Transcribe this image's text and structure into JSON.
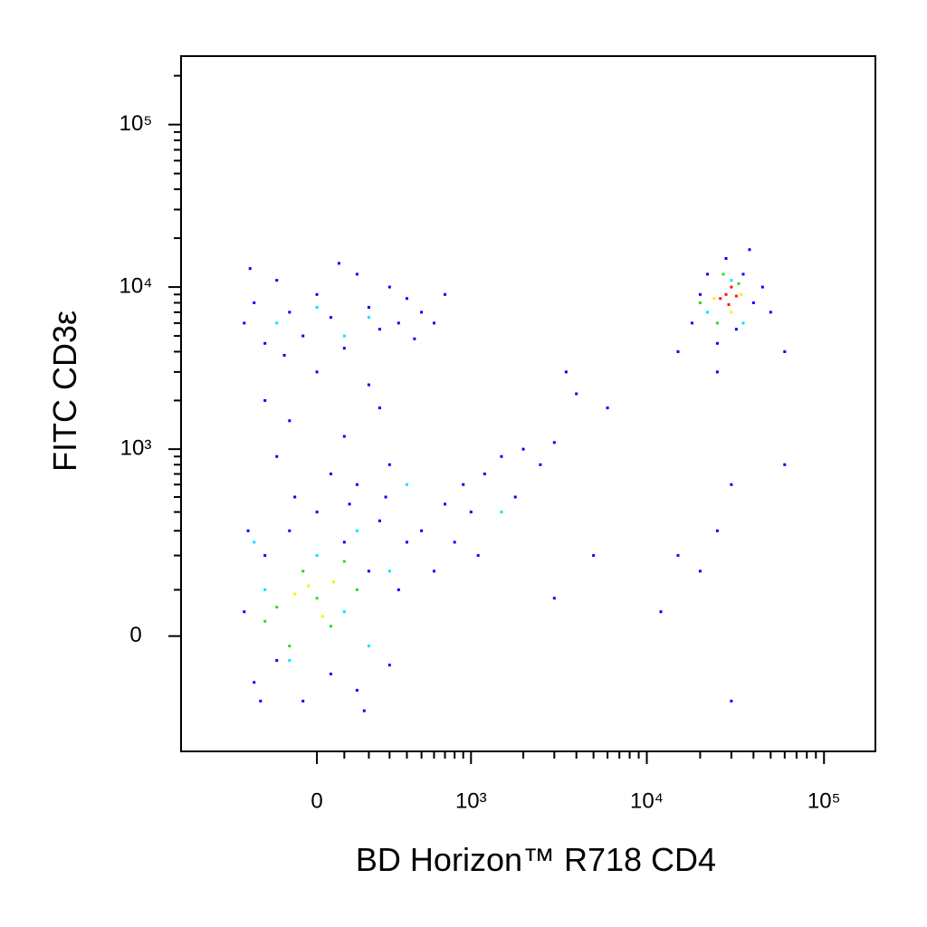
{
  "chart_data": {
    "type": "scatter",
    "xlabel": "BD Horizon™ R718  CD4",
    "ylabel": "FITC  CD3ε",
    "xscale": "biexponential",
    "yscale": "biexponential",
    "xlim": [
      -780,
      195000
    ],
    "ylim": [
      -350,
      264000
    ],
    "xticks": [
      0,
      {
        "value": 1000,
        "label": "10³"
      },
      {
        "value": 10000,
        "label": "10⁴"
      },
      {
        "value": 100000,
        "label": "10⁵"
      }
    ],
    "yticks": [
      0,
      {
        "value": 1000,
        "label": "10³"
      },
      {
        "value": 10000,
        "label": "10⁴"
      },
      {
        "value": 100000,
        "label": "10⁵"
      }
    ],
    "xminorticks": [
      100,
      200,
      300,
      400,
      500,
      600,
      700,
      800,
      900,
      2000,
      3000,
      4000,
      5000,
      6000,
      7000,
      8000,
      9000,
      20000,
      30000,
      40000,
      50000,
      60000,
      70000,
      80000,
      90000
    ],
    "yminorticks": [
      100,
      200,
      300,
      400,
      500,
      600,
      700,
      800,
      900,
      2000,
      3000,
      4000,
      5000,
      6000,
      7000,
      8000,
      9000,
      20000,
      30000,
      40000,
      50000,
      60000,
      70000,
      80000,
      90000,
      200000
    ],
    "series": [
      {
        "color": "#0000ff",
        "x": [
          -300,
          -250,
          -200,
          -150,
          -100,
          -50,
          0,
          50,
          100,
          150,
          200,
          250,
          300,
          350,
          400,
          -280,
          -220,
          120,
          -80,
          280,
          180,
          -300,
          -250,
          -200,
          -150,
          -100,
          -50,
          0,
          50,
          100,
          150,
          200,
          250,
          300,
          350,
          400,
          450,
          500,
          600,
          700,
          -270,
          -120,
          80,
          -200,
          -100,
          0,
          100,
          200,
          300,
          -150,
          50,
          250,
          150,
          500,
          700,
          900,
          1200,
          1500,
          2000,
          2500,
          3000,
          800,
          1000,
          1800,
          600,
          1100,
          4000,
          6000,
          3500,
          18000,
          20000,
          22000,
          25000,
          28000,
          32000,
          35000,
          40000,
          45000,
          50000,
          15000,
          25000,
          38000,
          60000,
          30000,
          25000,
          20000,
          30000,
          60000,
          15000,
          12000,
          5000,
          3000
        ],
        "y": [
          50,
          -100,
          200,
          -50,
          300,
          -150,
          400,
          -80,
          250,
          -120,
          150,
          350,
          -60,
          100,
          250,
          300,
          -150,
          450,
          500,
          500,
          -180,
          6000,
          8000,
          4500,
          11000,
          7000,
          5000,
          9000,
          6500,
          4200,
          12000,
          7500,
          5500,
          10000,
          6000,
          8500,
          4800,
          7000,
          6000,
          9000,
          13000,
          3800,
          14000,
          2000,
          1500,
          3000,
          1200,
          2500,
          800,
          900,
          700,
          1800,
          600,
          300,
          450,
          600,
          700,
          900,
          1000,
          800,
          1100,
          250,
          400,
          500,
          150,
          200,
          2200,
          1800,
          3000,
          6000,
          9000,
          12000,
          4500,
          15000,
          5500,
          12000,
          8000,
          10000,
          7000,
          4000,
          3000,
          17000,
          4000,
          600,
          300,
          150,
          -150,
          800,
          200,
          50,
          200,
          80
        ]
      },
      {
        "color": "#00e5ff",
        "x": [
          -200,
          -100,
          0,
          100,
          200,
          -250,
          150,
          300,
          -150,
          0,
          200,
          100,
          22000,
          35000,
          30000,
          400,
          1500
        ],
        "y": [
          100,
          -50,
          200,
          50,
          -20,
          250,
          300,
          150,
          6000,
          7500,
          6500,
          5000,
          7000,
          6000,
          11000,
          600,
          400
        ]
      },
      {
        "color": "#22dd22",
        "x": [
          -150,
          -50,
          50,
          100,
          -100,
          0,
          150,
          -200,
          20000,
          25000,
          33000,
          27000
        ],
        "y": [
          60,
          150,
          20,
          180,
          -20,
          80,
          100,
          30,
          8000,
          6000,
          10500,
          12000
        ]
      },
      {
        "color": "#ffee00",
        "x": [
          -80,
          20,
          60,
          -30,
          24000,
          30000,
          34000
        ],
        "y": [
          90,
          40,
          120,
          110,
          8500,
          7000,
          9000
        ]
      },
      {
        "color": "#ff1100",
        "x": [
          28000,
          30000,
          26000,
          32000,
          29000
        ],
        "y": [
          9000,
          10000,
          8500,
          8800,
          7800
        ]
      }
    ]
  }
}
